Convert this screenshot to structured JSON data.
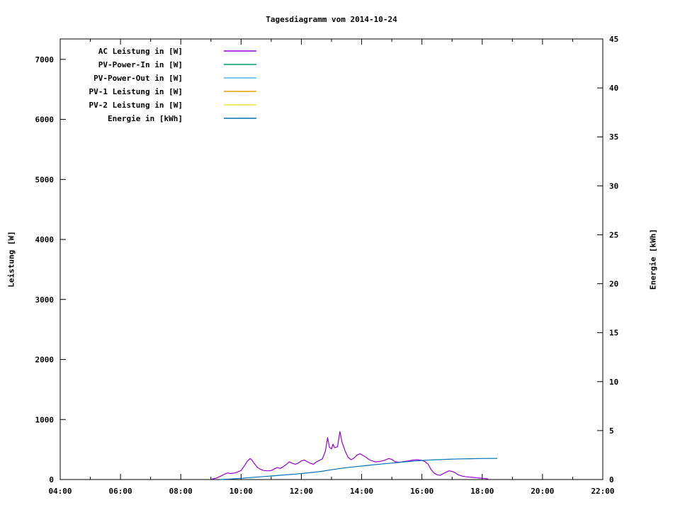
{
  "title": "Tagesdiagramm vom 2014-10-24",
  "axes": {
    "left_label": "Leistung [W]",
    "right_label": "Energie [kWh]",
    "x_major_ticks": [
      {
        "label": "04:00",
        "h": 4
      },
      {
        "label": "06:00",
        "h": 6
      },
      {
        "label": "08:00",
        "h": 8
      },
      {
        "label": "10:00",
        "h": 10
      },
      {
        "label": "12:00",
        "h": 12
      },
      {
        "label": "14:00",
        "h": 14
      },
      {
        "label": "16:00",
        "h": 16
      },
      {
        "label": "18:00",
        "h": 18
      },
      {
        "label": "20:00",
        "h": 20
      },
      {
        "label": "22:00",
        "h": 22
      }
    ],
    "x_minor_hours": [
      5,
      7,
      9,
      11,
      13,
      15,
      17,
      19,
      21
    ],
    "y_ticks": [
      0,
      1000,
      2000,
      3000,
      4000,
      5000,
      6000,
      7000
    ],
    "y2_ticks": [
      0,
      5,
      10,
      15,
      20,
      25,
      30,
      35,
      40,
      45
    ]
  },
  "legend": [
    {
      "label": "AC Leistung in [W]",
      "color": "#9400d3"
    },
    {
      "label": "PV-Power-In in [W]",
      "color": "#009e73"
    },
    {
      "label": "PV-Power-Out in [W]",
      "color": "#56b4e9"
    },
    {
      "label": "PV-1 Leistung in [W]",
      "color": "#e69f00"
    },
    {
      "label": "PV-2 Leistung in [W]",
      "color": "#f0e442"
    },
    {
      "label": "Energie in [kWh]",
      "color": "#0072b2"
    }
  ],
  "chart_data": {
    "type": "line",
    "title": "Tagesdiagramm vom 2014-10-24",
    "xlabel": "",
    "ylabel": "Leistung [W]",
    "y2label": "Energie [kWh]",
    "xlim_hours": [
      4,
      22
    ],
    "ylim": [
      0,
      7340
    ],
    "y2lim": [
      0,
      45
    ],
    "grid": false,
    "legend_position": "top-left-inside",
    "series": [
      {
        "name": "AC Leistung in [W]",
        "color": "#9400d3",
        "axis": "y1",
        "points": [
          [
            9.0,
            5
          ],
          [
            9.15,
            20
          ],
          [
            9.3,
            50
          ],
          [
            9.45,
            90
          ],
          [
            9.55,
            110
          ],
          [
            9.65,
            100
          ],
          [
            9.8,
            110
          ],
          [
            9.9,
            130
          ],
          [
            10.0,
            150
          ],
          [
            10.1,
            220
          ],
          [
            10.2,
            300
          ],
          [
            10.3,
            350
          ],
          [
            10.35,
            330
          ],
          [
            10.45,
            260
          ],
          [
            10.55,
            200
          ],
          [
            10.65,
            170
          ],
          [
            10.75,
            150
          ],
          [
            10.9,
            145
          ],
          [
            11.0,
            150
          ],
          [
            11.1,
            175
          ],
          [
            11.2,
            200
          ],
          [
            11.3,
            185
          ],
          [
            11.4,
            215
          ],
          [
            11.5,
            250
          ],
          [
            11.6,
            295
          ],
          [
            11.7,
            270
          ],
          [
            11.8,
            255
          ],
          [
            11.9,
            275
          ],
          [
            12.0,
            310
          ],
          [
            12.1,
            325
          ],
          [
            12.2,
            295
          ],
          [
            12.3,
            270
          ],
          [
            12.4,
            255
          ],
          [
            12.5,
            295
          ],
          [
            12.6,
            320
          ],
          [
            12.7,
            345
          ],
          [
            12.8,
            480
          ],
          [
            12.87,
            700
          ],
          [
            12.93,
            540
          ],
          [
            13.0,
            510
          ],
          [
            13.05,
            590
          ],
          [
            13.1,
            530
          ],
          [
            13.2,
            545
          ],
          [
            13.28,
            800
          ],
          [
            13.35,
            620
          ],
          [
            13.45,
            480
          ],
          [
            13.55,
            370
          ],
          [
            13.65,
            330
          ],
          [
            13.75,
            360
          ],
          [
            13.85,
            410
          ],
          [
            13.95,
            430
          ],
          [
            14.05,
            400
          ],
          [
            14.15,
            370
          ],
          [
            14.25,
            330
          ],
          [
            14.35,
            310
          ],
          [
            14.45,
            295
          ],
          [
            14.6,
            300
          ],
          [
            14.75,
            320
          ],
          [
            14.9,
            350
          ],
          [
            15.0,
            335
          ],
          [
            15.1,
            300
          ],
          [
            15.25,
            285
          ],
          [
            15.4,
            300
          ],
          [
            15.55,
            310
          ],
          [
            15.7,
            325
          ],
          [
            15.85,
            330
          ],
          [
            16.0,
            320
          ],
          [
            16.1,
            300
          ],
          [
            16.2,
            260
          ],
          [
            16.3,
            170
          ],
          [
            16.4,
            110
          ],
          [
            16.5,
            80
          ],
          [
            16.6,
            70
          ],
          [
            16.75,
            110
          ],
          [
            16.9,
            145
          ],
          [
            17.0,
            135
          ],
          [
            17.1,
            115
          ],
          [
            17.2,
            80
          ],
          [
            17.35,
            55
          ],
          [
            17.5,
            45
          ],
          [
            17.7,
            35
          ],
          [
            17.9,
            25
          ],
          [
            18.05,
            20
          ],
          [
            18.2,
            10
          ]
        ]
      },
      {
        "name": "PV-Power-In in [W]",
        "color": "#009e73",
        "axis": "y1",
        "points": []
      },
      {
        "name": "PV-Power-Out in [W]",
        "color": "#56b4e9",
        "axis": "y1",
        "points": []
      },
      {
        "name": "PV-1 Leistung in [W]",
        "color": "#e69f00",
        "axis": "y1",
        "points": []
      },
      {
        "name": "PV-2 Leistung in [W]",
        "color": "#f0e442",
        "axis": "y1",
        "points": []
      },
      {
        "name": "Energie in [kWh]",
        "color": "#0072b2",
        "axis": "y2",
        "points": [
          [
            9.3,
            0.0
          ],
          [
            9.6,
            0.05
          ],
          [
            10.0,
            0.12
          ],
          [
            10.3,
            0.2
          ],
          [
            10.6,
            0.27
          ],
          [
            11.0,
            0.36
          ],
          [
            11.4,
            0.46
          ],
          [
            11.8,
            0.56
          ],
          [
            12.2,
            0.68
          ],
          [
            12.6,
            0.8
          ],
          [
            13.0,
            1.0
          ],
          [
            13.4,
            1.18
          ],
          [
            13.8,
            1.32
          ],
          [
            14.2,
            1.45
          ],
          [
            14.6,
            1.57
          ],
          [
            15.0,
            1.68
          ],
          [
            15.4,
            1.8
          ],
          [
            15.8,
            1.9
          ],
          [
            16.1,
            1.97
          ],
          [
            16.4,
            2.02
          ],
          [
            16.7,
            2.05
          ],
          [
            17.0,
            2.08
          ],
          [
            17.3,
            2.11
          ],
          [
            17.6,
            2.13
          ],
          [
            18.0,
            2.15
          ],
          [
            18.5,
            2.16
          ]
        ]
      }
    ]
  }
}
